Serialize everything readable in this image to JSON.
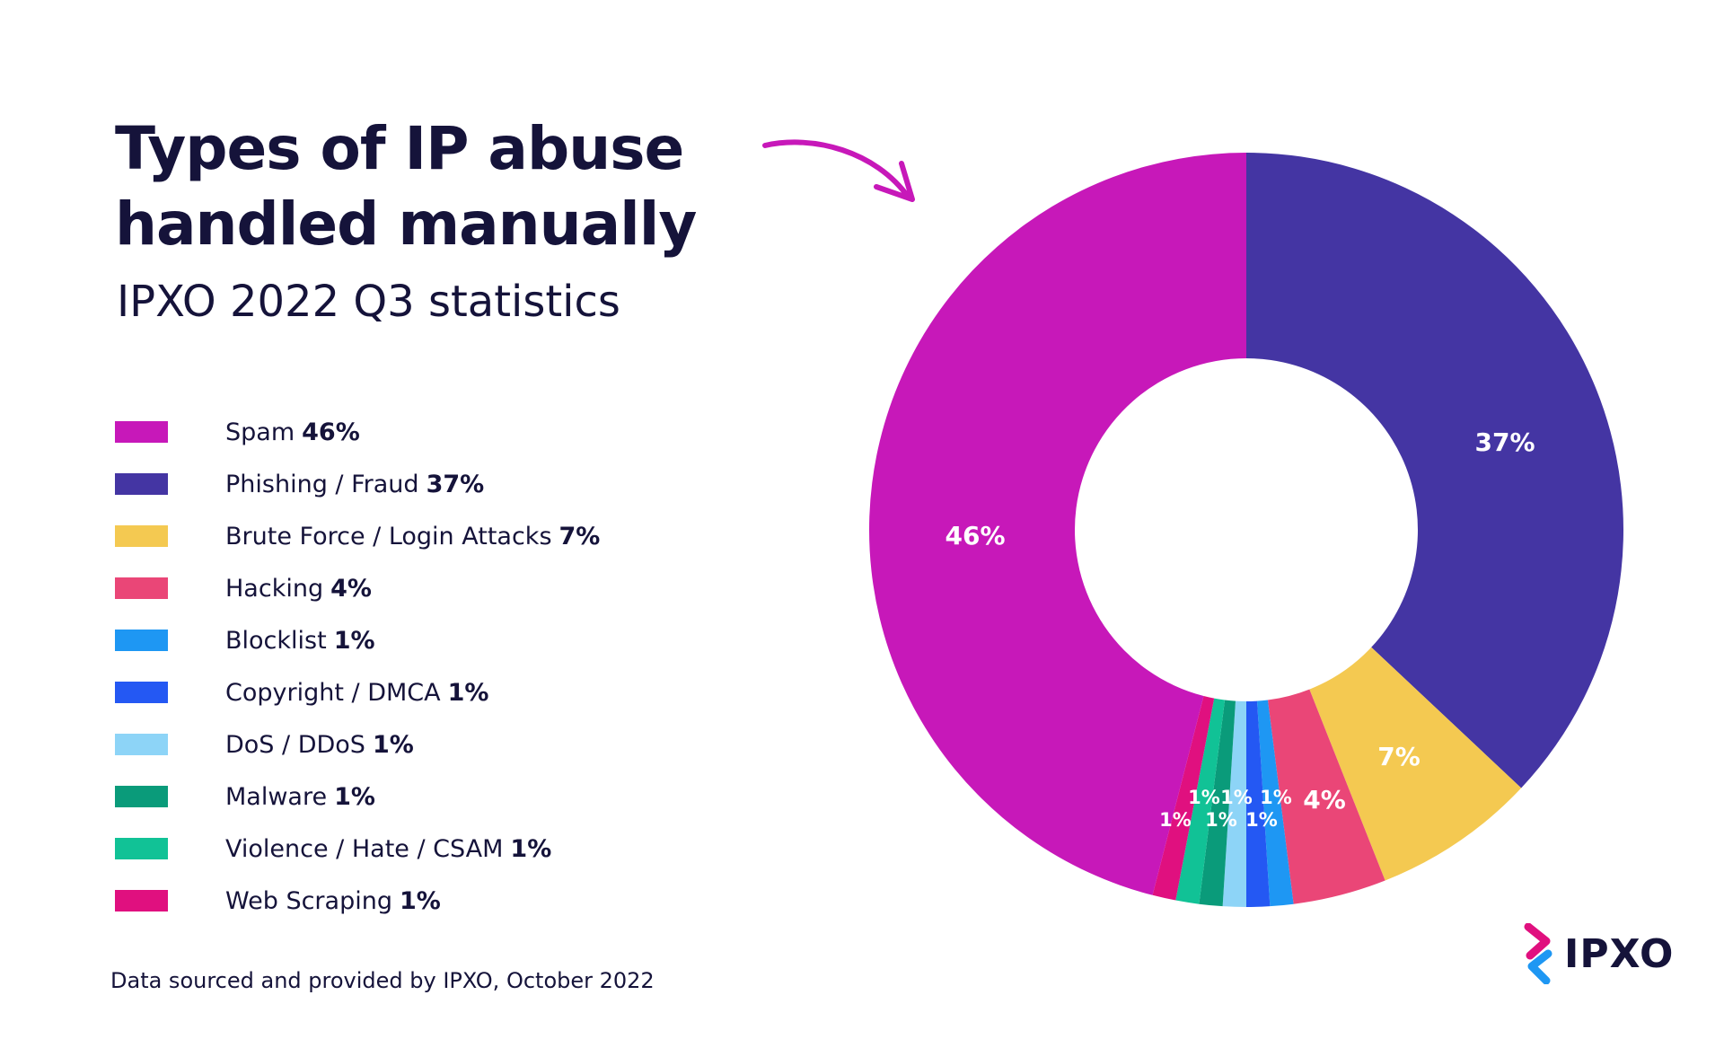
{
  "header": {
    "title_line1": "Types of IP abuse",
    "title_line2": "handled manually",
    "subtitle": "IPXO 2022 Q3 statistics"
  },
  "footer": {
    "source": "Data sourced and provided by IPXO, October 2022"
  },
  "logo": {
    "text": "IPXO",
    "colors": [
      "#e0107f",
      "#1e97f3"
    ]
  },
  "chart_data": {
    "type": "pie",
    "variant": "donut",
    "title": "Types of IP abuse handled manually",
    "subtitle": "IPXO 2022 Q3 statistics",
    "legend_position": "left",
    "slices": [
      {
        "name": "Phishing / Fraud",
        "value": 37,
        "label": "37%",
        "color": "#4435a3"
      },
      {
        "name": "Brute Force / Login Attacks",
        "value": 7,
        "label": "7%",
        "color": "#f4c951"
      },
      {
        "name": "Hacking",
        "value": 4,
        "label": "4%",
        "color": "#ea4677"
      },
      {
        "name": "Blocklist",
        "value": 1,
        "label": "1%",
        "color": "#1e97f3"
      },
      {
        "name": "Copyright / DMCA",
        "value": 1,
        "label": "1%",
        "color": "#2458f3"
      },
      {
        "name": "DoS / DDoS",
        "value": 1,
        "label": "1%",
        "color": "#8dd4f7"
      },
      {
        "name": "Malware",
        "value": 1,
        "label": "1%",
        "color": "#0a9b7a"
      },
      {
        "name": "Violence / Hate / CSAM",
        "value": 1,
        "label": "1%",
        "color": "#11c296"
      },
      {
        "name": "Web Scraping",
        "value": 1,
        "label": "1%",
        "color": "#e0107f"
      },
      {
        "name": "Spam",
        "value": 46,
        "label": "46%",
        "color": "#c718b9"
      }
    ],
    "legend": [
      {
        "name": "Spam",
        "label": "46%",
        "color": "#c718b9"
      },
      {
        "name": "Phishing / Fraud",
        "label": "37%",
        "color": "#4435a3"
      },
      {
        "name": "Brute Force / Login Attacks",
        "label": "7%",
        "color": "#f4c951"
      },
      {
        "name": "Hacking",
        "label": "4%",
        "color": "#ea4677"
      },
      {
        "name": "Blocklist",
        "label": "1%",
        "color": "#1e97f3"
      },
      {
        "name": "Copyright / DMCA",
        "label": "1%",
        "color": "#2458f3"
      },
      {
        "name": "DoS / DDoS",
        "label": "1%",
        "color": "#8dd4f7"
      },
      {
        "name": "Malware",
        "label": "1%",
        "color": "#0a9b7a"
      },
      {
        "name": "Violence / Hate / CSAM",
        "label": "1%",
        "color": "#11c296"
      },
      {
        "name": "Web Scraping",
        "label": "1%",
        "color": "#e0107f"
      }
    ],
    "arrow_color": "#c718b9"
  }
}
